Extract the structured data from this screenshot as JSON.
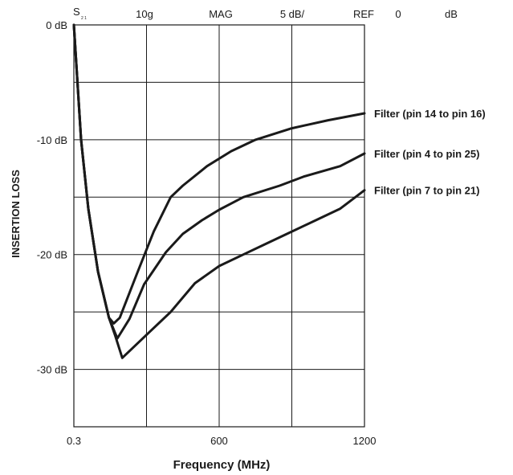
{
  "chart_data": {
    "type": "line",
    "header": {
      "s_label": "S",
      "s_sub": "2 1",
      "format": "10g",
      "mag": "MAG",
      "scale": "5 dB/",
      "ref": "REF",
      "ref_value": "0",
      "ref_unit": "dB"
    },
    "xlabel": "Frequency (MHz)",
    "ylabel": "INSERTION LOSS",
    "xlim": [
      0.3,
      1200
    ],
    "ylim": [
      -35,
      0
    ],
    "x_ticks": [
      {
        "value": 0.3,
        "label": "0.3"
      },
      {
        "value": 600,
        "label": "600"
      },
      {
        "value": 1200,
        "label": "1200"
      }
    ],
    "y_ticks": [
      {
        "value": 0,
        "label": "0 dB"
      },
      {
        "value": -10,
        "label": "-10 dB"
      },
      {
        "value": -20,
        "label": "-20 dB"
      },
      {
        "value": -30,
        "label": "-30 dB"
      }
    ],
    "grid": true,
    "series": [
      {
        "name": "Filter (pin 14 to pin 16)",
        "points": [
          [
            0.3,
            0
          ],
          [
            30,
            -10
          ],
          [
            60,
            -16
          ],
          [
            100,
            -21.5
          ],
          [
            145,
            -25.5
          ],
          [
            165,
            -26
          ],
          [
            190,
            -25.5
          ],
          [
            260,
            -21.7
          ],
          [
            330,
            -18
          ],
          [
            400,
            -15
          ],
          [
            450,
            -14
          ],
          [
            550,
            -12.3
          ],
          [
            650,
            -11
          ],
          [
            750,
            -10
          ],
          [
            900,
            -9
          ],
          [
            1050,
            -8.3
          ],
          [
            1200,
            -7.7
          ]
        ]
      },
      {
        "name": "Filter (pin 4 to pin 25)",
        "points": [
          [
            0.3,
            0
          ],
          [
            30,
            -10
          ],
          [
            60,
            -16
          ],
          [
            100,
            -21.5
          ],
          [
            145,
            -25.5
          ],
          [
            170,
            -26.8
          ],
          [
            180,
            -27.3
          ],
          [
            230,
            -25.6
          ],
          [
            290,
            -22.6
          ],
          [
            380,
            -19.8
          ],
          [
            450,
            -18.2
          ],
          [
            530,
            -17
          ],
          [
            600,
            -16.1
          ],
          [
            700,
            -15
          ],
          [
            850,
            -14
          ],
          [
            950,
            -13.2
          ],
          [
            1100,
            -12.3
          ],
          [
            1200,
            -11.2
          ]
        ]
      },
      {
        "name": "Filter (pin 7 to pin 21)",
        "points": [
          [
            0.3,
            0
          ],
          [
            30,
            -10
          ],
          [
            60,
            -16
          ],
          [
            100,
            -21.5
          ],
          [
            145,
            -25.5
          ],
          [
            170,
            -27
          ],
          [
            200,
            -29
          ],
          [
            300,
            -27
          ],
          [
            400,
            -25
          ],
          [
            500,
            -22.5
          ],
          [
            600,
            -21
          ],
          [
            700,
            -20
          ],
          [
            800,
            -19
          ],
          [
            900,
            -18
          ],
          [
            1000,
            -17
          ],
          [
            1100,
            -16
          ],
          [
            1200,
            -14.4
          ]
        ]
      }
    ]
  }
}
